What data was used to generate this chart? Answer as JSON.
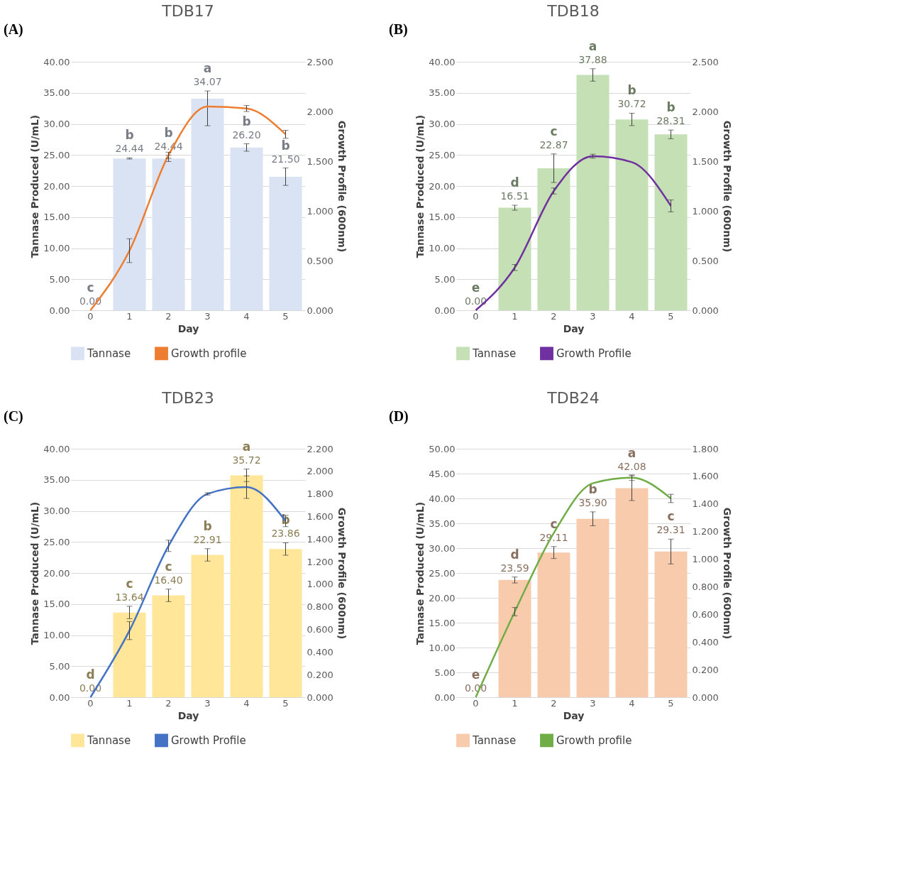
{
  "chart_data": [
    {
      "type": "bar",
      "title": "TDB17",
      "xlabel": "Day",
      "ylabel": "Tannase Produced (U/mL)",
      "y2label": "Growth Profile (600nm)",
      "categories": [
        "0",
        "1",
        "2",
        "3",
        "4",
        "5"
      ],
      "grid": "y",
      "legend": "bottom",
      "ylim": [
        0,
        40
      ],
      "yticks": [
        {
          "value": 0,
          "label": "0.00"
        },
        {
          "value": 5,
          "label": "5.00"
        },
        {
          "value": 10,
          "label": "10.00"
        },
        {
          "value": 15,
          "label": "15.00"
        },
        {
          "value": 20,
          "label": "20.00"
        },
        {
          "value": 25,
          "label": "25.00"
        },
        {
          "value": 30,
          "label": "30.00"
        },
        {
          "value": 35,
          "label": "35.00"
        },
        {
          "value": 40,
          "label": "40.00"
        }
      ],
      "y2lim": [
        0,
        2.5
      ],
      "y2ticks": [
        {
          "value": 0,
          "label": "0.000"
        },
        {
          "value": 0.5,
          "label": "0.500"
        },
        {
          "value": 1,
          "label": "1.000"
        },
        {
          "value": 1.5,
          "label": "1.500"
        },
        {
          "value": 2,
          "label": "2.000"
        },
        {
          "value": 2.5,
          "label": "2.500"
        }
      ],
      "series": [
        {
          "name": "Tannase",
          "color": "#dae3f3",
          "values": [
            0,
            24.44,
            24.44,
            34.07,
            26.2,
            21.5
          ],
          "errors": [
            null,
            0.1,
            0.5,
            [
              29.7,
              35.3
            ],
            0.6,
            1.4
          ],
          "value_labels": [
            "0.00",
            "24.44",
            "24.44",
            "34.07",
            "26.20",
            "21.50"
          ]
        },
        {
          "name": "Growth profile",
          "type": "line",
          "axis": "y2",
          "color": "#ed7d31",
          "values": [
            0,
            0.6,
            1.56,
            2.05,
            2.03,
            1.77
          ],
          "errors": [
            null,
            0.12,
            0.03,
            null,
            0.03,
            0.04
          ]
        }
      ],
      "annotations": [
        "(A)",
        {
          "text": "c",
          "x": "0",
          "y": 0
        },
        {
          "text": "b",
          "x": "1",
          "y": 24.44
        },
        {
          "text": "b",
          "x": "2",
          "y": 24.44
        },
        {
          "text": "a",
          "x": "3",
          "y": 34.07
        },
        {
          "text": "b",
          "x": "4",
          "y": 26.2
        },
        {
          "text": "b",
          "x": "5",
          "y": 21.5
        }
      ]
    },
    {
      "type": "bar",
      "title": "TDB18",
      "xlabel": "Day",
      "ylabel": "Tannase Produced (U/mL)",
      "y2label": "Growth Profile (600nm)",
      "categories": [
        "0",
        "1",
        "2",
        "3",
        "4",
        "5"
      ],
      "grid": "y",
      "legend": "bottom",
      "ylim": [
        0,
        40
      ],
      "yticks": [
        {
          "value": 0,
          "label": "0.00"
        },
        {
          "value": 5,
          "label": "5.00"
        },
        {
          "value": 10,
          "label": "10.00"
        },
        {
          "value": 15,
          "label": "15.00"
        },
        {
          "value": 20,
          "label": "20.00"
        },
        {
          "value": 25,
          "label": "25.00"
        },
        {
          "value": 30,
          "label": "30.00"
        },
        {
          "value": 35,
          "label": "35.00"
        },
        {
          "value": 40,
          "label": "40.00"
        }
      ],
      "y2lim": [
        0,
        2.5
      ],
      "y2ticks": [
        {
          "value": 0,
          "label": "0.000"
        },
        {
          "value": 0.5,
          "label": "0.500"
        },
        {
          "value": 1,
          "label": "1.000"
        },
        {
          "value": 1.5,
          "label": "1.500"
        },
        {
          "value": 2,
          "label": "2.000"
        },
        {
          "value": 2.5,
          "label": "2.500"
        }
      ],
      "series": [
        {
          "name": "Tannase",
          "color": "#c5e0b4",
          "values": [
            0,
            16.51,
            22.87,
            37.88,
            30.72,
            28.31
          ],
          "errors": [
            null,
            0.4,
            2.3,
            1.0,
            1.0,
            0.7
          ],
          "value_labels": [
            "0.00",
            "16.51",
            "22.87",
            "37.88",
            "30.72",
            "28.31"
          ]
        },
        {
          "name": "Growth Profile",
          "type": "line",
          "axis": "y2",
          "color": "#7030a0",
          "values": [
            0,
            0.43,
            1.2,
            1.55,
            1.49,
            1.05
          ],
          "errors": [
            null,
            0.03,
            0.03,
            0.02,
            null,
            0.06
          ]
        }
      ],
      "annotations": [
        "(B)",
        {
          "text": "e",
          "x": "0",
          "y": 0
        },
        {
          "text": "d",
          "x": "1",
          "y": 16.51
        },
        {
          "text": "c",
          "x": "2",
          "y": 22.87
        },
        {
          "text": "a",
          "x": "3",
          "y": 37.88
        },
        {
          "text": "b",
          "x": "4",
          "y": 30.72
        },
        {
          "text": "b",
          "x": "5",
          "y": 28.31
        }
      ]
    },
    {
      "type": "bar",
      "title": "TDB23",
      "xlabel": "Day",
      "ylabel": "Tannase Produced (U/mL)",
      "y2label": "Growth Profile (600nm)",
      "categories": [
        "0",
        "1",
        "2",
        "3",
        "4",
        "5"
      ],
      "grid": "y",
      "legend": "bottom",
      "ylim": [
        0,
        40
      ],
      "yticks": [
        {
          "value": 0,
          "label": "0.00"
        },
        {
          "value": 5,
          "label": "5.00"
        },
        {
          "value": 10,
          "label": "10.00"
        },
        {
          "value": 15,
          "label": "15.00"
        },
        {
          "value": 20,
          "label": "20.00"
        },
        {
          "value": 25,
          "label": "25.00"
        },
        {
          "value": 30,
          "label": "30.00"
        },
        {
          "value": 35,
          "label": "35.00"
        },
        {
          "value": 40,
          "label": "40.00"
        }
      ],
      "y2lim": [
        0,
        2.2
      ],
      "y2ticks": [
        {
          "value": 0,
          "label": "0.000"
        },
        {
          "value": 0.2,
          "label": "0.200"
        },
        {
          "value": 0.4,
          "label": "0.400"
        },
        {
          "value": 0.6,
          "label": "0.600"
        },
        {
          "value": 0.8,
          "label": "0.800"
        },
        {
          "value": 1,
          "label": "1.000"
        },
        {
          "value": 1.2,
          "label": "1.200"
        },
        {
          "value": 1.4,
          "label": "1.400"
        },
        {
          "value": 1.6,
          "label": "1.600"
        },
        {
          "value": 1.8,
          "label": "1.800"
        },
        {
          "value": 2,
          "label": "2.000"
        },
        {
          "value": 2.2,
          "label": "2.200"
        }
      ],
      "series": [
        {
          "name": "Tannase",
          "color": "#ffe699",
          "values": [
            0,
            13.64,
            16.4,
            22.91,
            35.72,
            23.86
          ],
          "errors": [
            null,
            1.0,
            1.0,
            1.0,
            1.0,
            1.0
          ],
          "value_labels": [
            "0.00",
            "13.64",
            "16.40",
            "22.91",
            "35.72",
            "23.86"
          ]
        },
        {
          "name": "Growth Profile",
          "type": "line",
          "axis": "y2",
          "color": "#4472c4",
          "values": [
            0,
            0.59,
            1.34,
            1.8,
            1.86,
            1.56
          ],
          "errors": [
            null,
            0.08,
            0.05,
            0.01,
            0.1,
            0.05
          ]
        }
      ],
      "annotations": [
        "(C)",
        {
          "text": "d",
          "x": "0",
          "y": 0
        },
        {
          "text": "c",
          "x": "1",
          "y": 13.64
        },
        {
          "text": "c",
          "x": "2",
          "y": 16.4
        },
        {
          "text": "b",
          "x": "3",
          "y": 22.91
        },
        {
          "text": "a",
          "x": "4",
          "y": 35.72
        },
        {
          "text": "b",
          "x": "5",
          "y": 23.86
        }
      ]
    },
    {
      "type": "bar",
      "title": "TDB24",
      "xlabel": "Day",
      "ylabel": "Tannase Produced (U/mL)",
      "y2label": "Growth Profile (600nm)",
      "categories": [
        "0",
        "1",
        "2",
        "3",
        "4",
        "5"
      ],
      "grid": "y",
      "legend": "bottom",
      "ylim": [
        0,
        50
      ],
      "yticks": [
        {
          "value": 0,
          "label": "0.00"
        },
        {
          "value": 5,
          "label": "5.00"
        },
        {
          "value": 10,
          "label": "10.00"
        },
        {
          "value": 15,
          "label": "15.00"
        },
        {
          "value": 20,
          "label": "20.00"
        },
        {
          "value": 25,
          "label": "25.00"
        },
        {
          "value": 30,
          "label": "30.00"
        },
        {
          "value": 35,
          "label": "35.00"
        },
        {
          "value": 40,
          "label": "40.00"
        },
        {
          "value": 45,
          "label": "45.00"
        },
        {
          "value": 50,
          "label": "50.00"
        }
      ],
      "y2lim": [
        0,
        1.8
      ],
      "y2ticks": [
        {
          "value": 0,
          "label": "0.000"
        },
        {
          "value": 0.2,
          "label": "0.200"
        },
        {
          "value": 0.4,
          "label": "0.400"
        },
        {
          "value": 0.6,
          "label": "0.600"
        },
        {
          "value": 0.8,
          "label": "0.800"
        },
        {
          "value": 1,
          "label": "1.000"
        },
        {
          "value": 1.2,
          "label": "1.200"
        },
        {
          "value": 1.4,
          "label": "1.400"
        },
        {
          "value": 1.6,
          "label": "1.600"
        },
        {
          "value": 1.8,
          "label": "1.800"
        }
      ],
      "series": [
        {
          "name": "Tannase",
          "color": "#f8cbad",
          "values": [
            0,
            23.59,
            29.11,
            35.9,
            42.08,
            29.31
          ],
          "errors": [
            null,
            0.6,
            1.2,
            1.4,
            2.5,
            2.5
          ],
          "value_labels": [
            "0.00",
            "23.59",
            "29.11",
            "35.90",
            "42.08",
            "29.31"
          ]
        },
        {
          "name": "Growth profile",
          "type": "line",
          "axis": "y2",
          "color": "#70ad47",
          "values": [
            0,
            0.62,
            1.19,
            1.55,
            1.59,
            1.44
          ],
          "errors": [
            null,
            0.03,
            null,
            null,
            0.02,
            0.03
          ]
        }
      ],
      "annotations": [
        "(D)",
        {
          "text": "e",
          "x": "0",
          "y": 0
        },
        {
          "text": "d",
          "x": "1",
          "y": 23.59
        },
        {
          "text": "c",
          "x": "2",
          "y": 29.11
        },
        {
          "text": "b",
          "x": "3",
          "y": 35.9
        },
        {
          "text": "a",
          "x": "4",
          "y": 42.08
        },
        {
          "text": "c",
          "x": "5",
          "y": 29.31
        }
      ]
    }
  ]
}
